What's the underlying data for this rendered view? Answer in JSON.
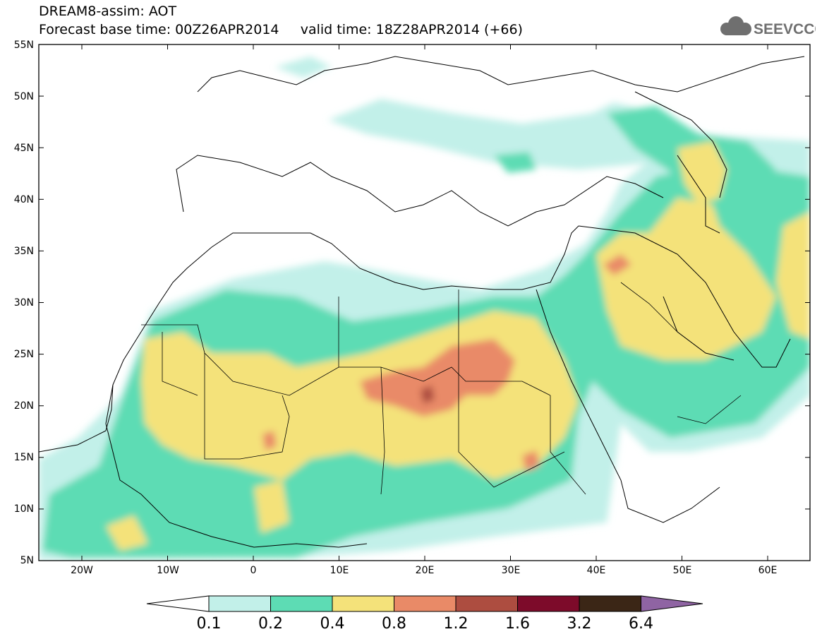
{
  "header": {
    "title_line1": "DREAM8-assim: AOT",
    "title_line2": "Forecast base time: 00Z26APR2014     valid time: 18Z28APR2014 (+66)"
  },
  "logo": {
    "text": "SEEVCCC",
    "icon": "cloud-icon"
  },
  "map": {
    "lat_labels": [
      "55N",
      "50N",
      "45N",
      "40N",
      "35N",
      "30N",
      "25N",
      "20N",
      "15N",
      "10N",
      "5N"
    ],
    "lon_labels": [
      "20W",
      "10W",
      "0",
      "10E",
      "20E",
      "30E",
      "40E",
      "50E",
      "60E"
    ]
  },
  "colorbar": {
    "labels": [
      "0.1",
      "0.2",
      "0.4",
      "0.8",
      "1.2",
      "1.6",
      "3.2",
      "6.4"
    ],
    "colors": [
      "#c2f0e9",
      "#5ddcb4",
      "#f4e27a",
      "#e98a67",
      "#ad4d40",
      "#7d0b2a",
      "#3b2616",
      "#8f64a3"
    ]
  }
}
